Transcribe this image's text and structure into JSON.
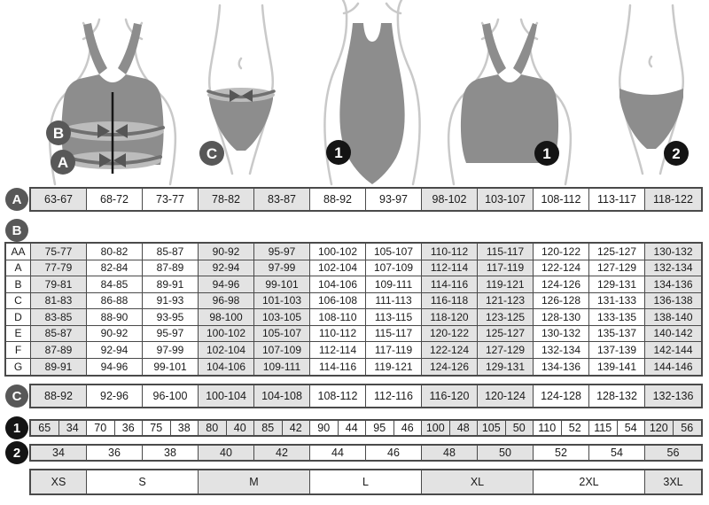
{
  "badges": {
    "a": "A",
    "b": "B",
    "c": "C",
    "one": "1",
    "two": "2"
  },
  "chart_data": {
    "type": "table",
    "title": "",
    "measurement_rows": {
      "A_underbust_cm": [
        "63-67",
        "68-72",
        "73-77",
        "78-82",
        "83-87",
        "88-92",
        "93-97",
        "98-102",
        "103-107",
        "108-112",
        "113-117",
        "118-122"
      ],
      "B_bust_by_cup_cm": [
        {
          "label": "AA",
          "values": [
            "75-77",
            "80-82",
            "85-87",
            "90-92",
            "95-97",
            "100-102",
            "105-107",
            "110-112",
            "115-117",
            "120-122",
            "125-127",
            "130-132"
          ]
        },
        {
          "label": "A",
          "values": [
            "77-79",
            "82-84",
            "87-89",
            "92-94",
            "97-99",
            "102-104",
            "107-109",
            "112-114",
            "117-119",
            "122-124",
            "127-129",
            "132-134"
          ]
        },
        {
          "label": "B",
          "values": [
            "79-81",
            "84-85",
            "89-91",
            "94-96",
            "99-101",
            "104-106",
            "109-111",
            "114-116",
            "119-121",
            "124-126",
            "129-131",
            "134-136"
          ]
        },
        {
          "label": "C",
          "values": [
            "81-83",
            "86-88",
            "91-93",
            "96-98",
            "101-103",
            "106-108",
            "111-113",
            "116-118",
            "121-123",
            "126-128",
            "131-133",
            "136-138"
          ]
        },
        {
          "label": "D",
          "values": [
            "83-85",
            "88-90",
            "93-95",
            "98-100",
            "103-105",
            "108-110",
            "113-115",
            "118-120",
            "123-125",
            "128-130",
            "133-135",
            "138-140"
          ]
        },
        {
          "label": "E",
          "values": [
            "85-87",
            "90-92",
            "95-97",
            "100-102",
            "105-107",
            "110-112",
            "115-117",
            "120-122",
            "125-127",
            "130-132",
            "135-137",
            "140-142"
          ]
        },
        {
          "label": "F",
          "values": [
            "87-89",
            "92-94",
            "97-99",
            "102-104",
            "107-109",
            "112-114",
            "117-119",
            "122-124",
            "127-129",
            "132-134",
            "137-139",
            "142-144"
          ]
        },
        {
          "label": "G",
          "values": [
            "89-91",
            "94-96",
            "99-101",
            "104-106",
            "109-111",
            "114-116",
            "119-121",
            "124-126",
            "129-131",
            "134-136",
            "139-141",
            "144-146"
          ]
        }
      ],
      "C_hips_cm": [
        "88-92",
        "92-96",
        "96-100",
        "100-104",
        "104-108",
        "108-112",
        "112-116",
        "116-120",
        "120-124",
        "124-128",
        "128-132",
        "132-136"
      ],
      "size_row_1_band_and_dress": [
        "65",
        "34",
        "70",
        "36",
        "75",
        "38",
        "80",
        "40",
        "85",
        "42",
        "90",
        "44",
        "95",
        "46",
        "100",
        "48",
        "105",
        "50",
        "110",
        "52",
        "115",
        "54",
        "120",
        "56"
      ],
      "size_row_2_dress": [
        "34",
        "36",
        "38",
        "40",
        "42",
        "44",
        "46",
        "48",
        "50",
        "52",
        "54",
        "56"
      ],
      "international_sizes": [
        "XS",
        "S",
        "M",
        "L",
        "XL",
        "2XL",
        "3XL"
      ]
    }
  },
  "tables": {
    "underbust": {
      "badge": "A",
      "values": [
        "63-67",
        "68-72",
        "73-77",
        "78-82",
        "83-87",
        "88-92",
        "93-97",
        "98-102",
        "103-107",
        "108-112",
        "113-117",
        "118-122"
      ]
    },
    "bust": {
      "badge": "B",
      "cup_rows": [
        {
          "label": "AA",
          "values": [
            "75-77",
            "80-82",
            "85-87",
            "90-92",
            "95-97",
            "100-102",
            "105-107",
            "110-112",
            "115-117",
            "120-122",
            "125-127",
            "130-132"
          ]
        },
        {
          "label": "A",
          "values": [
            "77-79",
            "82-84",
            "87-89",
            "92-94",
            "97-99",
            "102-104",
            "107-109",
            "112-114",
            "117-119",
            "122-124",
            "127-129",
            "132-134"
          ]
        },
        {
          "label": "B",
          "values": [
            "79-81",
            "84-85",
            "89-91",
            "94-96",
            "99-101",
            "104-106",
            "109-111",
            "114-116",
            "119-121",
            "124-126",
            "129-131",
            "134-136"
          ]
        },
        {
          "label": "C",
          "values": [
            "81-83",
            "86-88",
            "91-93",
            "96-98",
            "101-103",
            "106-108",
            "111-113",
            "116-118",
            "121-123",
            "126-128",
            "131-133",
            "136-138"
          ]
        },
        {
          "label": "D",
          "values": [
            "83-85",
            "88-90",
            "93-95",
            "98-100",
            "103-105",
            "108-110",
            "113-115",
            "118-120",
            "123-125",
            "128-130",
            "133-135",
            "138-140"
          ]
        },
        {
          "label": "E",
          "values": [
            "85-87",
            "90-92",
            "95-97",
            "100-102",
            "105-107",
            "110-112",
            "115-117",
            "120-122",
            "125-127",
            "130-132",
            "135-137",
            "140-142"
          ]
        },
        {
          "label": "F",
          "values": [
            "87-89",
            "92-94",
            "97-99",
            "102-104",
            "107-109",
            "112-114",
            "117-119",
            "122-124",
            "127-129",
            "132-134",
            "137-139",
            "142-144"
          ]
        },
        {
          "label": "G",
          "values": [
            "89-91",
            "94-96",
            "99-101",
            "104-106",
            "109-111",
            "114-116",
            "119-121",
            "124-126",
            "129-131",
            "134-136",
            "139-141",
            "144-146"
          ]
        }
      ]
    },
    "hips": {
      "badge": "C",
      "values": [
        "88-92",
        "92-96",
        "96-100",
        "100-104",
        "104-108",
        "108-112",
        "112-116",
        "116-120",
        "120-124",
        "124-128",
        "128-132",
        "132-136"
      ]
    },
    "bra_sizes": {
      "badge": "1",
      "values": [
        "65",
        "34",
        "70",
        "36",
        "75",
        "38",
        "80",
        "40",
        "85",
        "42",
        "90",
        "44",
        "95",
        "46",
        "100",
        "48",
        "105",
        "50",
        "110",
        "52",
        "115",
        "54",
        "120",
        "56"
      ]
    },
    "dress_sizes": {
      "badge": "2",
      "values": [
        "34",
        "36",
        "38",
        "40",
        "42",
        "44",
        "46",
        "48",
        "50",
        "52",
        "54",
        "56"
      ]
    },
    "intl_sizes": {
      "labels": [
        "XS",
        "S",
        "M",
        "L",
        "XL",
        "2XL",
        "3XL"
      ],
      "column_spans": [
        1,
        2,
        2,
        2,
        2,
        2,
        1
      ]
    }
  },
  "layout": {
    "shaded_columns": [
      0,
      3,
      4,
      7,
      8,
      11
    ],
    "shaded_size_cells": [
      0,
      2,
      4,
      6
    ]
  },
  "colors": {
    "shaded_cell": "#e3e3e3",
    "border": "#4a4a4a",
    "badge_gray": "#585858",
    "badge_black": "#141414",
    "garment": "#8d8d8d",
    "measure_band": "#bcbcbc",
    "outline": "#c9c9c9"
  }
}
